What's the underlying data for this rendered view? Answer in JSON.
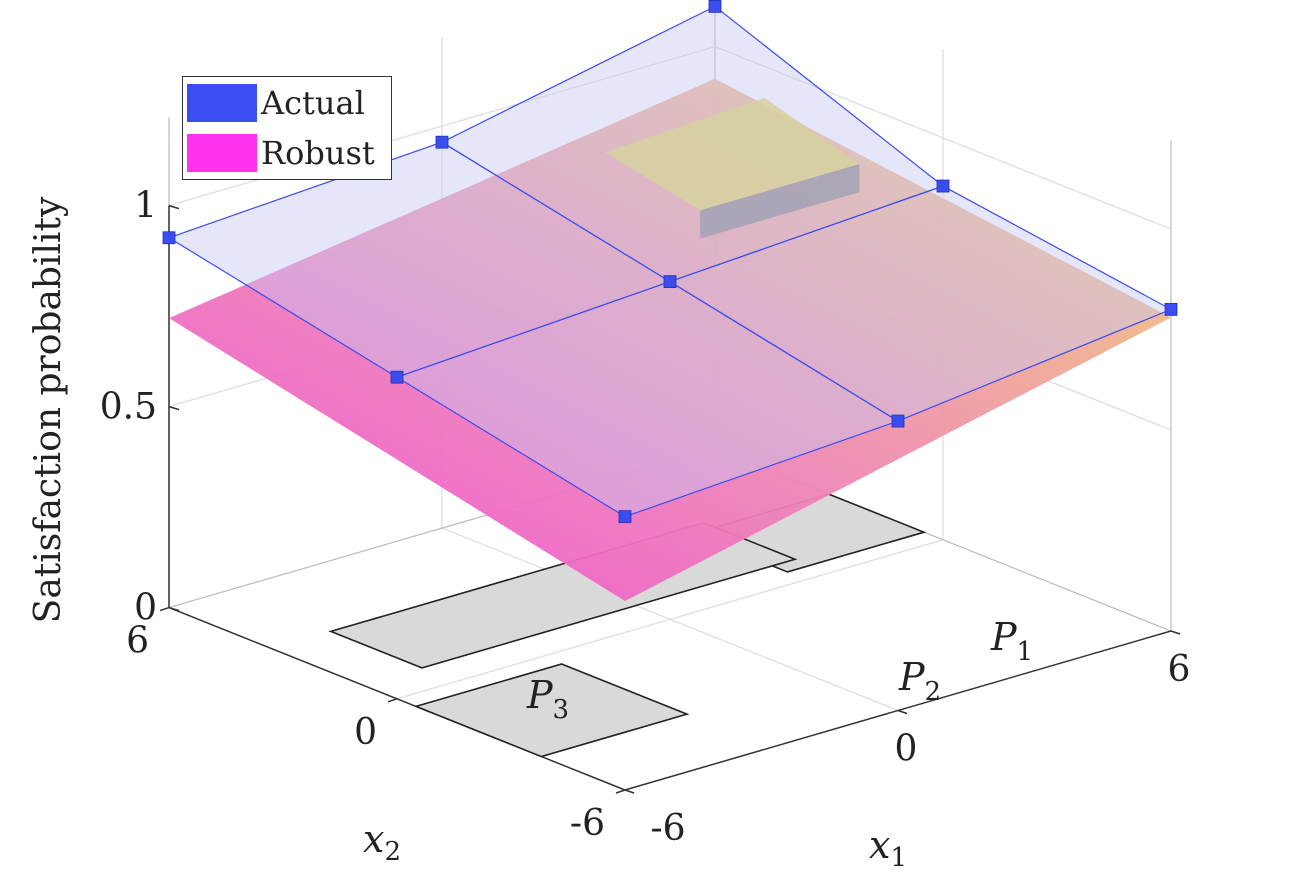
{
  "chart_data": {
    "type": "surface3d",
    "zlabel": "Satisfaction probability",
    "xlabel_var": "x",
    "xlabel_sub": "1",
    "ylabel_var": "x",
    "ylabel_sub": "2",
    "x_ticks": [
      "-6",
      "0",
      "6"
    ],
    "y_ticks": [
      "-6",
      "0",
      "6"
    ],
    "z_ticks": [
      "0",
      "0.5",
      "1"
    ],
    "xlim": [
      -6,
      6
    ],
    "ylim": [
      -6,
      6
    ],
    "zlim": [
      0,
      1
    ],
    "grid": true,
    "legend_position": "top-left",
    "series": [
      {
        "name": "Actual",
        "color": "#3b4cf0",
        "x": [
          -6,
          0,
          6
        ],
        "y": [
          -6,
          0,
          6
        ],
        "z": [
          [
            0.68,
            0.72,
            0.8
          ],
          [
            0.8,
            0.84,
            0.88
          ],
          [
            0.92,
            0.96,
            1.1
          ]
        ]
      },
      {
        "name": "Robust",
        "color": "#ff33cc",
        "x": [
          -6,
          6
        ],
        "y": [
          -6,
          6
        ],
        "z": [
          [
            0.47,
            0.78
          ],
          [
            0.72,
            0.92
          ]
        ]
      }
    ],
    "regions": [
      {
        "label": "P",
        "sub": "1"
      },
      {
        "label": "P",
        "sub": "2"
      },
      {
        "label": "P",
        "sub": "3"
      }
    ]
  }
}
